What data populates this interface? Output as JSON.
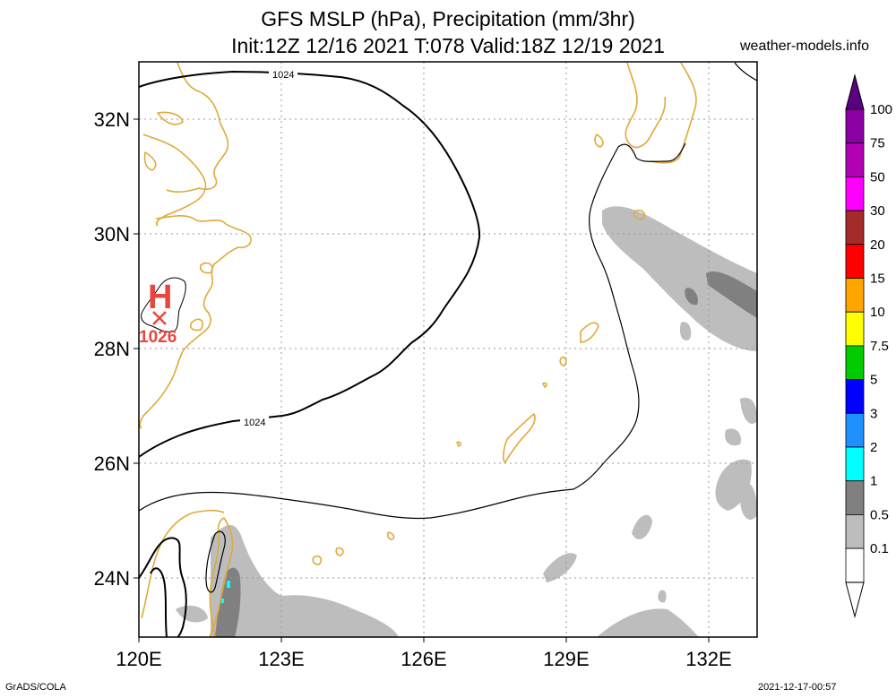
{
  "header": {
    "title_line1": "GFS MSLP (hPa), Precipitation (mm/3hr)",
    "title_line2": "Init:12Z 12/16 2021 T:078 Valid:18Z 12/19 2021",
    "site": "weather-models.info"
  },
  "footer": {
    "left": "GrADS/COLA",
    "right": "2021-12-17-00:57"
  },
  "map": {
    "lon_range": [
      120,
      133
    ],
    "lat_range": [
      23,
      33
    ],
    "lat_ticks": [
      "32N",
      "30N",
      "28N",
      "26N",
      "24N"
    ],
    "lon_ticks": [
      "120E",
      "123E",
      "126E",
      "129E",
      "132E"
    ],
    "grid": true,
    "isobar_labels": [
      "1024",
      "1024"
    ],
    "high_center": {
      "symbol": "H",
      "value": "1026",
      "color": "#e8473f"
    },
    "colors": {
      "coastline": "#e0a93a",
      "isobar": "#000000",
      "precip_light": "#bdbdbd",
      "precip_mid": "#808080",
      "high": "#e8473f"
    }
  },
  "colorbar": {
    "labels": [
      "100",
      "75",
      "50",
      "30",
      "20",
      "15",
      "10",
      "7.5",
      "5",
      "3",
      "2",
      "1",
      "0.5",
      "0.1"
    ],
    "colors": [
      "#8b00a3",
      "#b400b4",
      "#ff00ff",
      "#a52a2a",
      "#ff0000",
      "#ffa500",
      "#ffff00",
      "#00cc00",
      "#0000ff",
      "#1e90ff",
      "#00ffff",
      "#808080",
      "#bdbdbd",
      "#ffffff"
    ],
    "top_color": "#5a0080"
  }
}
